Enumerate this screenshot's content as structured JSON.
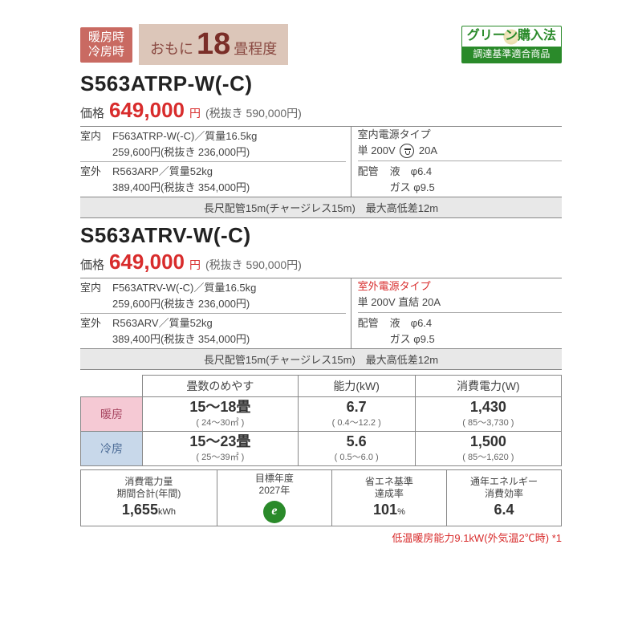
{
  "header": {
    "heat_cool_badge_line1": "暖房時",
    "heat_cool_badge_line2": "冷房時",
    "hero_prefix": "おもに",
    "hero_big": "18",
    "hero_suffix": "畳程度",
    "green_top": "グリーン購入法",
    "green_bot": "調達基準適合商品",
    "hero_bg": "#dcc6b9",
    "hero_text": "#7a2e28",
    "badge_bg": "#c96a62"
  },
  "models": [
    {
      "name": "S563ATRP-W(-C)",
      "price_label": "価格",
      "price": "649,000",
      "price_yen": "円",
      "price_tax": "(税抜き 590,000円)",
      "indoor": {
        "tag": "室内",
        "line1": "F563ATRP-W(-C)／質量16.5kg",
        "line2": "259,600円(税抜き 236,000円)"
      },
      "outdoor": {
        "tag": "室外",
        "line1": "R563ARP／質量52kg",
        "line2": "389,400円(税抜き 354,000円)"
      },
      "power": {
        "type": "室内電源タイプ",
        "type_red": false,
        "spec_pre": "単 200V",
        "has_plug_icon": true,
        "spec_post": "20A"
      },
      "pipe": {
        "label": "配管",
        "liq": "液　φ6.4",
        "gas": "ガス φ9.5"
      },
      "long_pipe": "長尺配管15m(チャージレス15m)　最大高低差12m"
    },
    {
      "name": "S563ATRV-W(-C)",
      "price_label": "価格",
      "price": "649,000",
      "price_yen": "円",
      "price_tax": "(税抜き 590,000円)",
      "indoor": {
        "tag": "室内",
        "line1": "F563ATRV-W(-C)／質量16.5kg",
        "line2": "259,600円(税抜き 236,000円)"
      },
      "outdoor": {
        "tag": "室外",
        "line1": "R563ARV／質量52kg",
        "line2": "389,400円(税抜き 354,000円)"
      },
      "power": {
        "type": "室外電源タイプ",
        "type_red": true,
        "spec_pre": "単 200V 直結 20A",
        "has_plug_icon": false,
        "spec_post": ""
      },
      "pipe": {
        "label": "配管",
        "liq": "液　φ6.4",
        "gas": "ガス φ9.5"
      },
      "long_pipe": "長尺配管15m(チャージレス15m)　最大高低差12m"
    }
  ],
  "perf": {
    "hdr_tatami": "畳数のめやす",
    "hdr_cap": "能力(kW)",
    "hdr_power": "消費電力(W)",
    "heat_label": "暖房",
    "cool_label": "冷房",
    "heat_color": "#f5c9d4",
    "cool_color": "#c8d8ea",
    "heat": {
      "tatami": "15〜18畳",
      "tatami_sub": "( 24〜30㎡ )",
      "cap": "6.7",
      "cap_sub": "( 0.4〜12.2 )",
      "power": "1,430",
      "power_sub": "( 85〜3,730 )"
    },
    "cool": {
      "tatami": "15〜23畳",
      "tatami_sub": "( 25〜39㎡ )",
      "cap": "5.6",
      "cap_sub": "( 0.5〜6.0 )",
      "power": "1,500",
      "power_sub": "( 85〜1,620 )"
    }
  },
  "bottom": {
    "annual_label1": "消費電力量",
    "annual_label2": "期間合計(年間)",
    "annual_val": "1,655",
    "annual_unit": "kWh",
    "target_label1": "目標年度",
    "target_label2": "2027年",
    "eco_e": "e",
    "achieve_label1": "省エネ基準",
    "achieve_label2": "達成率",
    "achieve_val": "101",
    "achieve_unit": "%",
    "apf_label1": "通年エネルギー",
    "apf_label2": "消費効率",
    "apf_val": "6.4"
  },
  "footnote": "低温暖房能力9.1kW(外気温2℃時) *1"
}
